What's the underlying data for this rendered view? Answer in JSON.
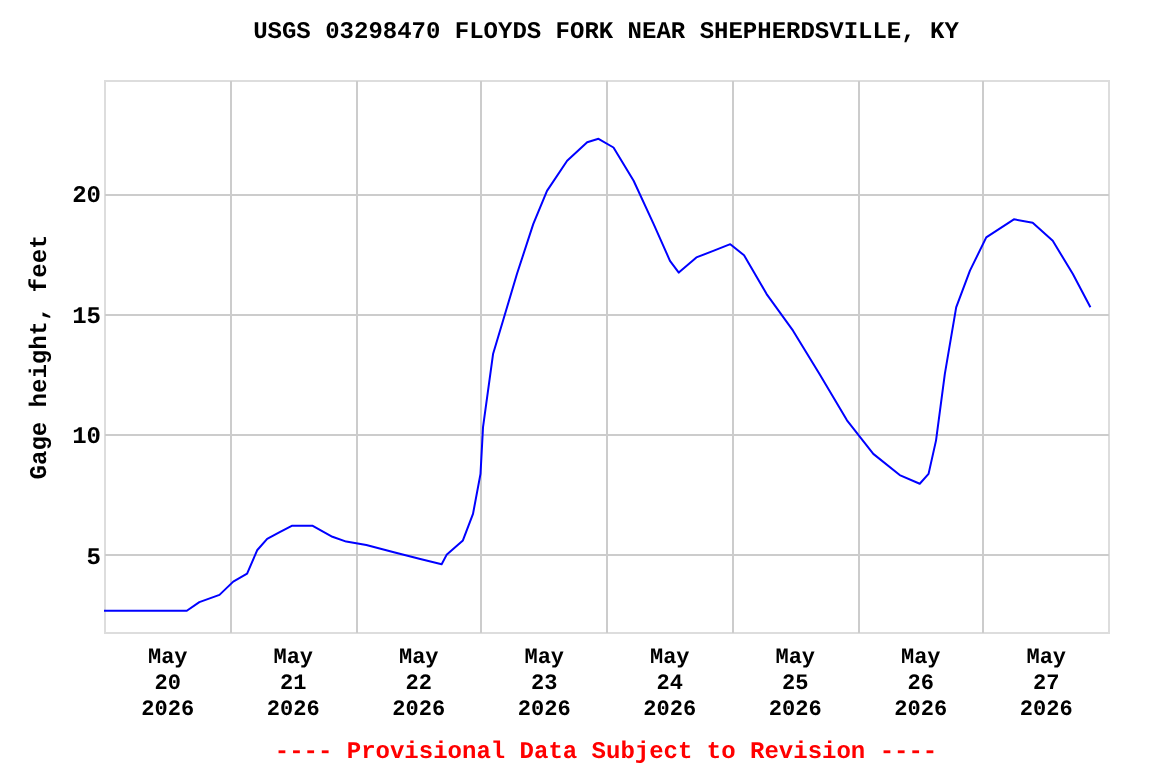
{
  "chart_data": {
    "type": "line",
    "title": "USGS 03298470 FLOYDS FORK NEAR SHEPHERDSVILLE, KY",
    "ylabel": "Gage height, feet",
    "annotations": [
      "---- Provisional Data Subject to Revision ----"
    ],
    "x": [
      "2026-05-20T00:00",
      "2026-05-20T15:50",
      "2026-05-20T18:14",
      "2026-05-20T22:05",
      "2026-05-21T00:43",
      "2026-05-21T03:22",
      "2026-05-21T05:17",
      "2026-05-21T07:12",
      "2026-05-21T09:36",
      "2026-05-21T12:00",
      "2026-05-21T15:50",
      "2026-05-21T19:41",
      "2026-05-21T22:19",
      "2026-05-22T02:10",
      "2026-05-22T07:26",
      "2026-05-22T12:29",
      "2026-05-22T16:34",
      "2026-05-22T17:31",
      "2026-05-22T20:38",
      "2026-05-22T22:34",
      "2026-05-23T00:00",
      "2026-05-23T00:29",
      "2026-05-23T02:24",
      "2026-05-23T04:19",
      "2026-05-23T06:58",
      "2026-05-23T10:05",
      "2026-05-23T12:43",
      "2026-05-23T16:34",
      "2026-05-23T20:24",
      "2026-05-23T22:34",
      "2026-05-24T01:26",
      "2026-05-24T05:17",
      "2026-05-24T09:07",
      "2026-05-24T12:14",
      "2026-05-24T13:55",
      "2026-05-24T17:17",
      "2026-05-24T20:38",
      "2026-05-24T23:46",
      "2026-05-25T02:24",
      "2026-05-25T06:43",
      "2026-05-25T11:46",
      "2026-05-25T16:48",
      "2026-05-25T22:05",
      "2026-05-26T03:07",
      "2026-05-26T08:10",
      "2026-05-26T12:00",
      "2026-05-26T13:41",
      "2026-05-26T15:07",
      "2026-05-26T16:48",
      "2026-05-26T18:58",
      "2026-05-26T21:36",
      "2026-05-27T00:43",
      "2026-05-27T06:00",
      "2026-05-27T09:36",
      "2026-05-27T13:26",
      "2026-05-27T17:17",
      "2026-05-27T20:38"
    ],
    "series": [
      {
        "color": "#0000ff",
        "values": [
          2.68,
          2.68,
          3.04,
          3.34,
          3.89,
          4.22,
          5.19,
          5.66,
          5.94,
          6.21,
          6.21,
          5.75,
          5.55,
          5.41,
          5.11,
          4.83,
          4.61,
          5.0,
          5.6,
          6.7,
          8.36,
          10.3,
          13.33,
          14.72,
          16.65,
          18.72,
          20.1,
          21.35,
          22.12,
          22.26,
          21.9,
          20.52,
          18.72,
          17.2,
          16.71,
          17.34,
          17.62,
          17.89,
          17.43,
          15.82,
          14.3,
          12.51,
          10.58,
          9.19,
          8.31,
          7.95,
          8.36,
          9.75,
          12.51,
          15.27,
          16.79,
          18.17,
          18.92,
          18.78,
          18.03,
          16.65,
          15.27
        ]
      }
    ],
    "xlim": [
      "2026-05-20T00:00",
      "2026-05-28T00:00"
    ],
    "xticks": [
      {
        "value": "2026-05-20T12:00",
        "label": "May\n20\n2026"
      },
      {
        "value": "2026-05-21T12:00",
        "label": "May\n21\n2026"
      },
      {
        "value": "2026-05-22T12:00",
        "label": "May\n22\n2026"
      },
      {
        "value": "2026-05-23T12:00",
        "label": "May\n23\n2026"
      },
      {
        "value": "2026-05-24T12:00",
        "label": "May\n24\n2026"
      },
      {
        "value": "2026-05-25T12:00",
        "label": "May\n25\n2026"
      },
      {
        "value": "2026-05-26T12:00",
        "label": "May\n26\n2026"
      },
      {
        "value": "2026-05-27T12:00",
        "label": "May\n27\n2026"
      },
      {
        "value": "2026-05-21T00:00",
        "label": null
      },
      {
        "value": "2026-05-22T00:00",
        "label": null
      },
      {
        "value": "2026-05-23T00:00",
        "label": null
      },
      {
        "value": "2026-05-24T00:00",
        "label": null
      },
      {
        "value": "2026-05-25T00:00",
        "label": null
      },
      {
        "value": "2026-05-26T00:00",
        "label": null
      },
      {
        "value": "2026-05-27T00:00",
        "label": null
      }
    ],
    "ylim": [
      1.8,
      24.7
    ],
    "yticks": [
      5,
      10,
      15,
      20
    ],
    "grid": true,
    "legend": false,
    "marker": "none",
    "line_style": "solid"
  }
}
